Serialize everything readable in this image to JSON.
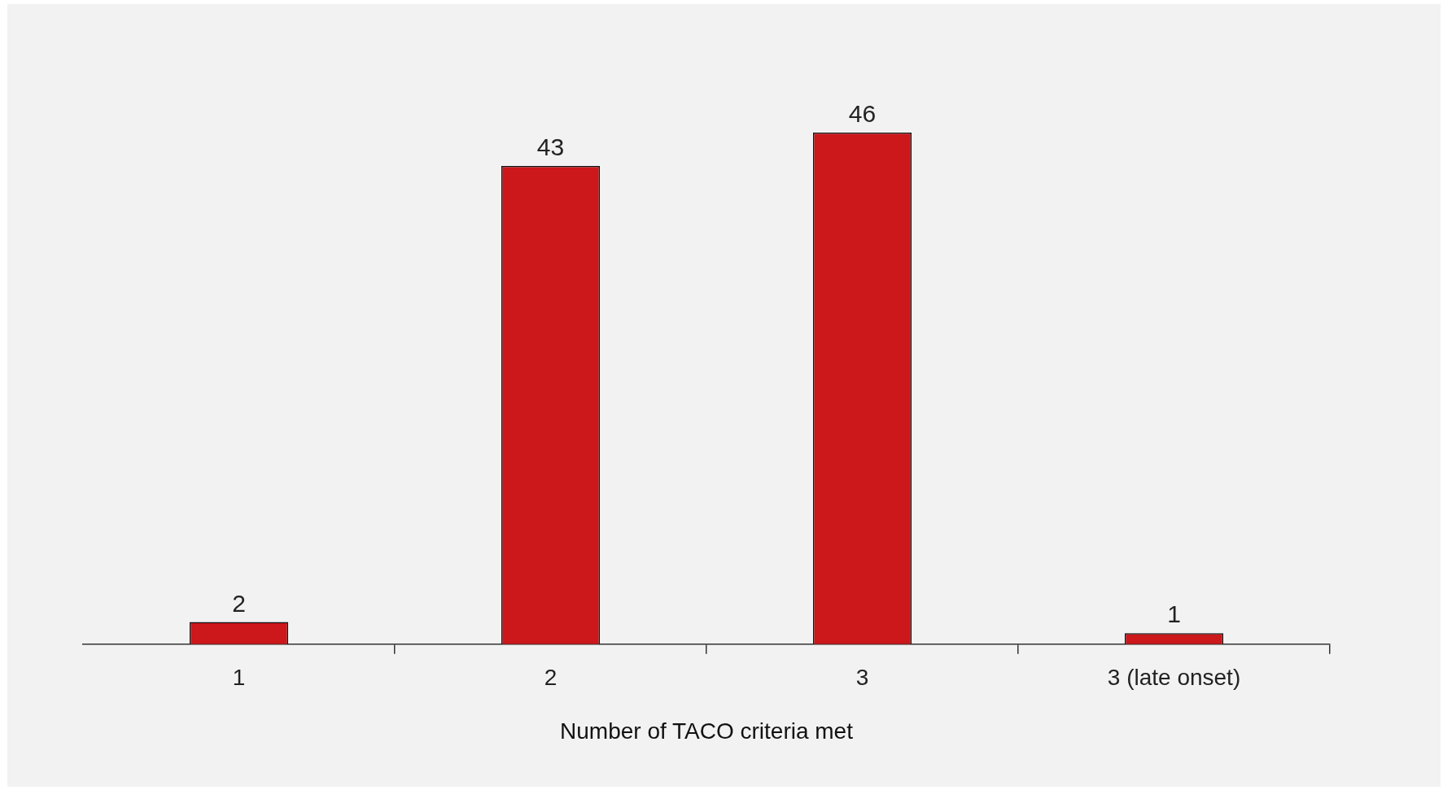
{
  "chart_data": {
    "type": "bar",
    "xlabel": "Number of TACO criteria met",
    "categories": [
      "1",
      "2",
      "3",
      "3 (late onset)"
    ],
    "values": [
      2,
      43,
      46,
      1
    ],
    "color": "#cc171b",
    "data_labels": true,
    "legend": false
  }
}
